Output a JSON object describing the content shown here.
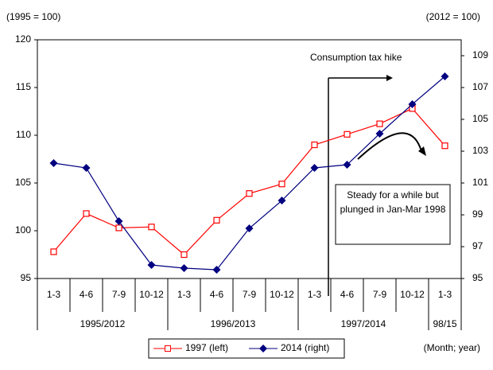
{
  "chart_data": {
    "type": "line",
    "y_label": "(1995 = 100)",
    "y2_label": "(2012 = 100)",
    "x_note": "(Month; year)",
    "groups": [
      {
        "label": "1995/2012",
        "categories": [
          "1-3",
          "4-6",
          "7-9",
          "10-12"
        ]
      },
      {
        "label": "1996/2013",
        "categories": [
          "1-3",
          "4-6",
          "7-9",
          "10-12"
        ]
      },
      {
        "label": "1997/2014",
        "categories": [
          "1-3",
          "4-6",
          "7-9",
          "10-12"
        ]
      },
      {
        "label": "98/15",
        "categories": [
          "1-3"
        ]
      }
    ],
    "series": [
      {
        "name": "1997 (left)",
        "color": "#ff0000",
        "values": [
          97.8,
          101.8,
          100.3,
          100.4,
          97.5,
          101.1,
          103.9,
          104.9,
          109.0,
          110.1,
          111.2,
          112.8,
          108.9
        ]
      },
      {
        "name": "2014 (right)",
        "color": "#000080",
        "axis": "y2",
        "values": [
          102.25,
          101.95,
          98.6,
          95.85,
          95.65,
          95.55,
          98.15,
          99.9,
          101.95,
          102.15,
          104.1,
          105.95,
          107.7
        ]
      }
    ],
    "ylim": [
      95,
      120
    ],
    "yticks": [
      95,
      100,
      105,
      110,
      115,
      120
    ],
    "y2lim": [
      95,
      110
    ],
    "y2ticks": [
      95,
      97,
      99,
      101,
      103,
      105,
      107,
      109
    ],
    "annotations": [
      "Consumption tax hike",
      "Steady for a while but plunged in Jan-Mar 1998"
    ]
  }
}
